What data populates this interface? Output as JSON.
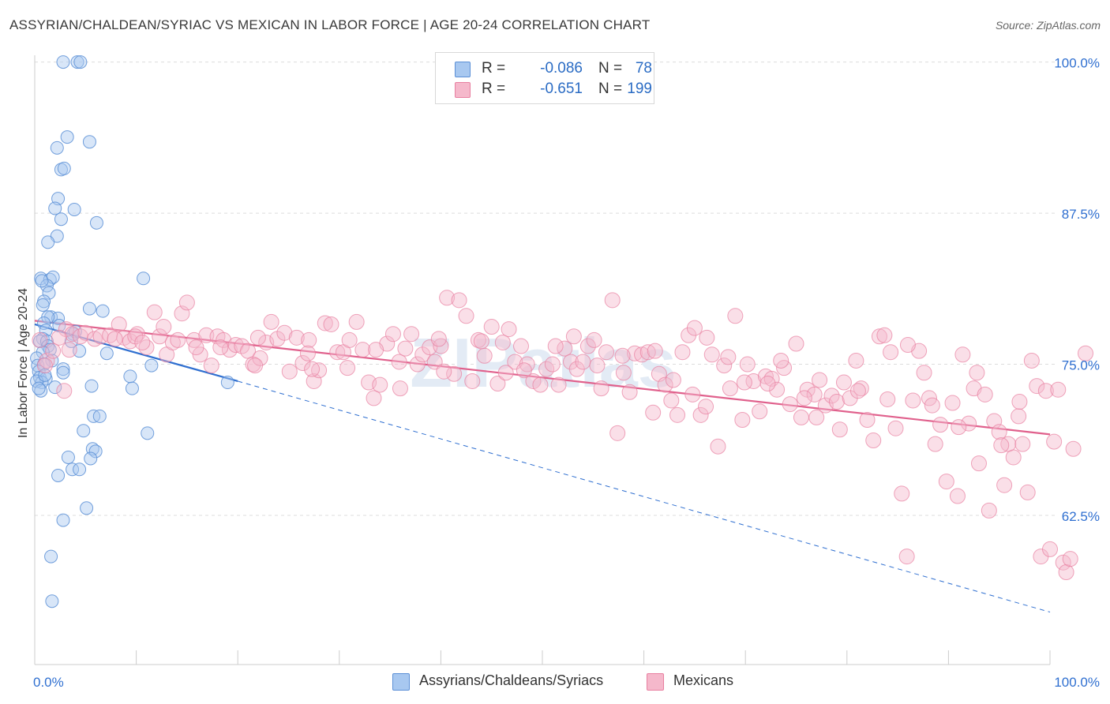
{
  "title": "ASSYRIAN/CHALDEAN/SYRIAC VS MEXICAN IN LABOR FORCE | AGE 20-24 CORRELATION CHART",
  "source": "Source: ZipAtlas.com",
  "watermark": "ZIPatlas",
  "legend": {
    "series1": {
      "r_label": "R =",
      "r_value": "-0.086",
      "n_label": "N =",
      "n_value": "78"
    },
    "series2": {
      "r_label": "R =",
      "r_value": "-0.651",
      "n_label": "N =",
      "n_value": "199"
    }
  },
  "bottom_legend": {
    "series1": "Assyrians/Chaldeans/Syriacs",
    "series2": "Mexicans"
  },
  "colors": {
    "series1_fill": "#a8c8f0",
    "series1_stroke": "#5b8fd6",
    "series1_line": "#2f6fd0",
    "series2_fill": "#f5b8cb",
    "series2_stroke": "#e87fa0",
    "series2_line": "#e0608c",
    "tick_text": "#2f6fd0",
    "grid": "#dddddd"
  },
  "chart_data": {
    "type": "scatter",
    "title": "ASSYRIAN/CHALDEAN/SYRIAC VS MEXICAN IN LABOR FORCE | AGE 20-24 CORRELATION CHART",
    "xlabel": "",
    "ylabel": "In Labor Force | Age 20-24",
    "xlim": [
      0,
      100
    ],
    "ylim": [
      50.5,
      101
    ],
    "x_tick_labels": [
      "0.0%",
      "100.0%"
    ],
    "y_ticks": [
      62.5,
      75.0,
      87.5,
      100.0
    ],
    "y_tick_labels": [
      "62.5%",
      "75.0%",
      "87.5%",
      "100.0%"
    ],
    "grid": "horizontal dashed",
    "legend_position": "top-center",
    "series": [
      {
        "name": "Assyrians/Chaldeans/Syriacs",
        "R": -0.086,
        "N": 78,
        "trend": {
          "x": [
            0,
            20
          ],
          "y": [
            78.3,
            73.6
          ],
          "extended_x": [
            20,
            100
          ],
          "extended_y": [
            73.6,
            54.5
          ]
        },
        "points": [
          [
            2.8,
            100
          ],
          [
            4.2,
            100
          ],
          [
            4.5,
            100
          ],
          [
            3.2,
            93.8
          ],
          [
            5.4,
            93.4
          ],
          [
            2.2,
            92.9
          ],
          [
            2.6,
            91.1
          ],
          [
            2.9,
            91.2
          ],
          [
            2.3,
            88.7
          ],
          [
            2.0,
            87.9
          ],
          [
            3.9,
            87.8
          ],
          [
            2.6,
            87.0
          ],
          [
            6.1,
            86.7
          ],
          [
            2.2,
            85.6
          ],
          [
            1.3,
            85.1
          ],
          [
            0.6,
            82.1
          ],
          [
            1.5,
            82.0
          ],
          [
            1.8,
            82.2
          ],
          [
            10.7,
            82.1
          ],
          [
            1.2,
            81.5
          ],
          [
            0.7,
            81.9
          ],
          [
            1.4,
            80.9
          ],
          [
            0.9,
            80.2
          ],
          [
            0.8,
            79.9
          ],
          [
            5.4,
            79.6
          ],
          [
            6.7,
            79.4
          ],
          [
            1.6,
            78.9
          ],
          [
            2.3,
            78.8
          ],
          [
            1.3,
            78.9
          ],
          [
            0.9,
            78.4
          ],
          [
            2.4,
            78.2
          ],
          [
            1.1,
            77.8
          ],
          [
            3.8,
            77.5
          ],
          [
            4.0,
            77.7
          ],
          [
            0.8,
            77.1
          ],
          [
            0.5,
            76.9
          ],
          [
            1.2,
            76.9
          ],
          [
            3.6,
            76.9
          ],
          [
            1.3,
            76.5
          ],
          [
            1.5,
            76.2
          ],
          [
            0.8,
            76.0
          ],
          [
            4.4,
            76.1
          ],
          [
            7.1,
            75.9
          ],
          [
            0.2,
            75.5
          ],
          [
            1.7,
            75.3
          ],
          [
            0.3,
            74.9
          ],
          [
            0.9,
            75.0
          ],
          [
            2.8,
            74.6
          ],
          [
            0.4,
            74.4
          ],
          [
            2.8,
            74.3
          ],
          [
            9.4,
            74.0
          ],
          [
            11.5,
            74.9
          ],
          [
            0.5,
            73.9
          ],
          [
            1.1,
            73.8
          ],
          [
            0.7,
            73.5
          ],
          [
            0.2,
            73.6
          ],
          [
            2.0,
            73.1
          ],
          [
            5.6,
            73.2
          ],
          [
            9.6,
            73.0
          ],
          [
            19.0,
            73.5
          ],
          [
            0.6,
            72.8
          ],
          [
            5.8,
            70.7
          ],
          [
            6.4,
            70.7
          ],
          [
            4.8,
            69.5
          ],
          [
            11.1,
            69.3
          ],
          [
            5.7,
            68.0
          ],
          [
            6.0,
            67.8
          ],
          [
            3.3,
            67.3
          ],
          [
            5.5,
            67.2
          ],
          [
            3.7,
            66.3
          ],
          [
            4.4,
            66.3
          ],
          [
            2.3,
            65.8
          ],
          [
            5.1,
            63.1
          ],
          [
            2.8,
            62.1
          ],
          [
            1.6,
            59.1
          ],
          [
            1.7,
            55.4
          ],
          [
            0.4,
            73.0
          ],
          [
            1.0,
            74.1
          ]
        ]
      },
      {
        "name": "Mexicans",
        "R": -0.651,
        "N": 199,
        "trend": {
          "x": [
            0,
            100
          ],
          "y": [
            78.6,
            69.2
          ]
        },
        "points": [
          [
            3.1,
            77.9
          ],
          [
            3.7,
            77.5
          ],
          [
            4.5,
            77.3
          ],
          [
            5.0,
            77.6
          ],
          [
            5.9,
            77.1
          ],
          [
            6.5,
            77.3
          ],
          [
            7.4,
            77.4
          ],
          [
            8.3,
            78.3
          ],
          [
            8.8,
            77.2
          ],
          [
            9.4,
            76.9
          ],
          [
            10.1,
            77.5
          ],
          [
            11.0,
            76.4
          ],
          [
            11.8,
            79.3
          ],
          [
            12.3,
            77.3
          ],
          [
            13.0,
            75.8
          ],
          [
            13.6,
            76.8
          ],
          [
            14.5,
            79.2
          ],
          [
            15.0,
            80.1
          ],
          [
            15.7,
            77.0
          ],
          [
            16.3,
            75.8
          ],
          [
            16.9,
            77.4
          ],
          [
            17.4,
            74.9
          ],
          [
            18.0,
            77.3
          ],
          [
            18.6,
            77.0
          ],
          [
            19.2,
            76.2
          ],
          [
            19.8,
            76.6
          ],
          [
            20.4,
            76.5
          ],
          [
            21.0,
            76.1
          ],
          [
            21.5,
            75.0
          ],
          [
            22.2,
            75.5
          ],
          [
            22.8,
            76.8
          ],
          [
            23.3,
            78.5
          ],
          [
            23.9,
            77.1
          ],
          [
            24.6,
            77.6
          ],
          [
            25.1,
            74.4
          ],
          [
            25.8,
            77.2
          ],
          [
            26.4,
            75.1
          ],
          [
            27.0,
            77.0
          ],
          [
            27.5,
            73.6
          ],
          [
            28.0,
            74.5
          ],
          [
            28.6,
            78.4
          ],
          [
            29.2,
            78.3
          ],
          [
            29.8,
            76.0
          ],
          [
            30.4,
            76.0
          ],
          [
            31.0,
            77.0
          ],
          [
            31.7,
            78.5
          ],
          [
            32.3,
            76.2
          ],
          [
            32.9,
            73.5
          ],
          [
            33.4,
            72.2
          ],
          [
            34.0,
            73.3
          ],
          [
            34.7,
            76.7
          ],
          [
            35.3,
            77.5
          ],
          [
            35.9,
            75.2
          ],
          [
            36.5,
            76.3
          ],
          [
            37.1,
            77.5
          ],
          [
            37.7,
            75.0
          ],
          [
            38.2,
            75.8
          ],
          [
            38.9,
            76.4
          ],
          [
            39.4,
            75.2
          ],
          [
            40.0,
            76.5
          ],
          [
            40.6,
            80.5
          ],
          [
            41.3,
            74.2
          ],
          [
            41.8,
            80.3
          ],
          [
            42.5,
            79.0
          ],
          [
            43.1,
            73.6
          ],
          [
            43.7,
            77.0
          ],
          [
            44.3,
            75.7
          ],
          [
            45.0,
            78.1
          ],
          [
            45.6,
            73.4
          ],
          [
            46.1,
            76.8
          ],
          [
            46.7,
            77.9
          ],
          [
            47.3,
            75.2
          ],
          [
            47.9,
            76.5
          ],
          [
            48.5,
            75.0
          ],
          [
            49.1,
            73.6
          ],
          [
            49.8,
            73.3
          ],
          [
            50.4,
            74.6
          ],
          [
            51.0,
            75.0
          ],
          [
            51.6,
            73.3
          ],
          [
            52.2,
            76.3
          ],
          [
            52.8,
            75.2
          ],
          [
            53.4,
            74.6
          ],
          [
            54.0,
            75.2
          ],
          [
            54.5,
            76.5
          ],
          [
            55.1,
            77.0
          ],
          [
            55.8,
            73.0
          ],
          [
            56.3,
            76.0
          ],
          [
            56.9,
            80.3
          ],
          [
            57.4,
            69.3
          ],
          [
            58.0,
            74.3
          ],
          [
            58.6,
            72.7
          ],
          [
            59.1,
            75.9
          ],
          [
            59.8,
            75.8
          ],
          [
            60.4,
            76.0
          ],
          [
            60.9,
            71.0
          ],
          [
            61.5,
            74.2
          ],
          [
            62.1,
            73.3
          ],
          [
            62.7,
            72.0
          ],
          [
            63.3,
            70.8
          ],
          [
            63.8,
            76.0
          ],
          [
            64.4,
            77.4
          ],
          [
            65.0,
            78.0
          ],
          [
            65.6,
            70.8
          ],
          [
            66.1,
            71.5
          ],
          [
            66.7,
            75.8
          ],
          [
            67.3,
            68.2
          ],
          [
            67.9,
            74.9
          ],
          [
            68.5,
            73.0
          ],
          [
            69.0,
            79.0
          ],
          [
            69.7,
            70.4
          ],
          [
            70.2,
            75.0
          ],
          [
            70.8,
            73.6
          ],
          [
            71.4,
            71.1
          ],
          [
            72.0,
            74.0
          ],
          [
            72.6,
            73.8
          ],
          [
            73.1,
            72.9
          ],
          [
            73.8,
            74.7
          ],
          [
            74.4,
            71.7
          ],
          [
            75.0,
            76.7
          ],
          [
            75.5,
            70.6
          ],
          [
            76.1,
            72.9
          ],
          [
            76.8,
            72.5
          ],
          [
            77.3,
            73.7
          ],
          [
            77.9,
            71.6
          ],
          [
            78.5,
            72.4
          ],
          [
            79.0,
            71.9
          ],
          [
            79.7,
            73.5
          ],
          [
            80.3,
            72.2
          ],
          [
            80.9,
            75.3
          ],
          [
            81.4,
            73.0
          ],
          [
            82.0,
            70.4
          ],
          [
            82.6,
            68.7
          ],
          [
            83.2,
            77.3
          ],
          [
            83.7,
            77.4
          ],
          [
            84.3,
            76.0
          ],
          [
            84.8,
            69.7
          ],
          [
            85.4,
            64.3
          ],
          [
            85.9,
            59.1
          ],
          [
            86.5,
            72.0
          ],
          [
            87.1,
            76.1
          ],
          [
            87.6,
            74.3
          ],
          [
            88.1,
            72.2
          ],
          [
            88.7,
            68.4
          ],
          [
            89.2,
            70.0
          ],
          [
            89.8,
            65.3
          ],
          [
            90.4,
            71.8
          ],
          [
            90.9,
            64.1
          ],
          [
            91.4,
            75.8
          ],
          [
            92.0,
            70.1
          ],
          [
            92.5,
            73.0
          ],
          [
            93.0,
            66.8
          ],
          [
            93.6,
            72.5
          ],
          [
            94.0,
            62.9
          ],
          [
            94.5,
            70.3
          ],
          [
            95.0,
            69.4
          ],
          [
            95.5,
            65.0
          ],
          [
            95.9,
            68.4
          ],
          [
            96.4,
            67.3
          ],
          [
            96.9,
            70.7
          ],
          [
            97.3,
            68.4
          ],
          [
            97.8,
            64.4
          ],
          [
            98.2,
            75.3
          ],
          [
            98.7,
            73.2
          ],
          [
            99.1,
            59.1
          ],
          [
            99.6,
            72.8
          ],
          [
            100.0,
            59.7
          ],
          [
            100.4,
            68.6
          ],
          [
            100.8,
            72.9
          ],
          [
            101.3,
            58.6
          ],
          [
            101.6,
            57.8
          ],
          [
            102.0,
            58.9
          ],
          [
            102.3,
            68.0
          ],
          [
            103.5,
            75.9
          ],
          [
            0.5,
            77.0
          ],
          [
            1.2,
            75.3
          ],
          [
            1.8,
            76.1
          ],
          [
            2.4,
            77.2
          ],
          [
            2.9,
            72.8
          ],
          [
            3.4,
            76.2
          ],
          [
            1.0,
            74.9
          ],
          [
            7.9,
            77.1
          ],
          [
            9.9,
            77.3
          ],
          [
            12.7,
            78.1
          ],
          [
            14.1,
            77.0
          ],
          [
            18.3,
            76.4
          ],
          [
            22.0,
            77.2
          ],
          [
            26.9,
            75.9
          ],
          [
            30.8,
            74.7
          ],
          [
            36.0,
            73.0
          ],
          [
            39.8,
            77.1
          ],
          [
            44.0,
            76.9
          ],
          [
            48.2,
            74.5
          ],
          [
            53.1,
            77.3
          ],
          [
            57.9,
            75.7
          ],
          [
            62.9,
            73.7
          ],
          [
            66.2,
            77.2
          ],
          [
            69.9,
            73.5
          ],
          [
            73.5,
            75.3
          ],
          [
            77.0,
            70.6
          ],
          [
            81.1,
            72.8
          ],
          [
            86.0,
            76.6
          ],
          [
            91.0,
            69.8
          ],
          [
            95.2,
            68.3
          ],
          [
            97.0,
            71.9
          ],
          [
            10.6,
            76.8
          ],
          [
            15.9,
            76.4
          ],
          [
            21.7,
            74.9
          ],
          [
            27.3,
            74.6
          ],
          [
            33.6,
            76.2
          ],
          [
            40.3,
            74.4
          ],
          [
            46.4,
            74.3
          ],
          [
            51.3,
            76.5
          ],
          [
            55.4,
            74.9
          ],
          [
            61.1,
            76.1
          ],
          [
            64.8,
            72.5
          ],
          [
            68.3,
            75.6
          ],
          [
            72.2,
            73.4
          ],
          [
            75.8,
            72.2
          ],
          [
            79.3,
            69.6
          ],
          [
            84.0,
            72.1
          ],
          [
            88.4,
            71.6
          ],
          [
            92.8,
            74.3
          ]
        ]
      }
    ]
  }
}
